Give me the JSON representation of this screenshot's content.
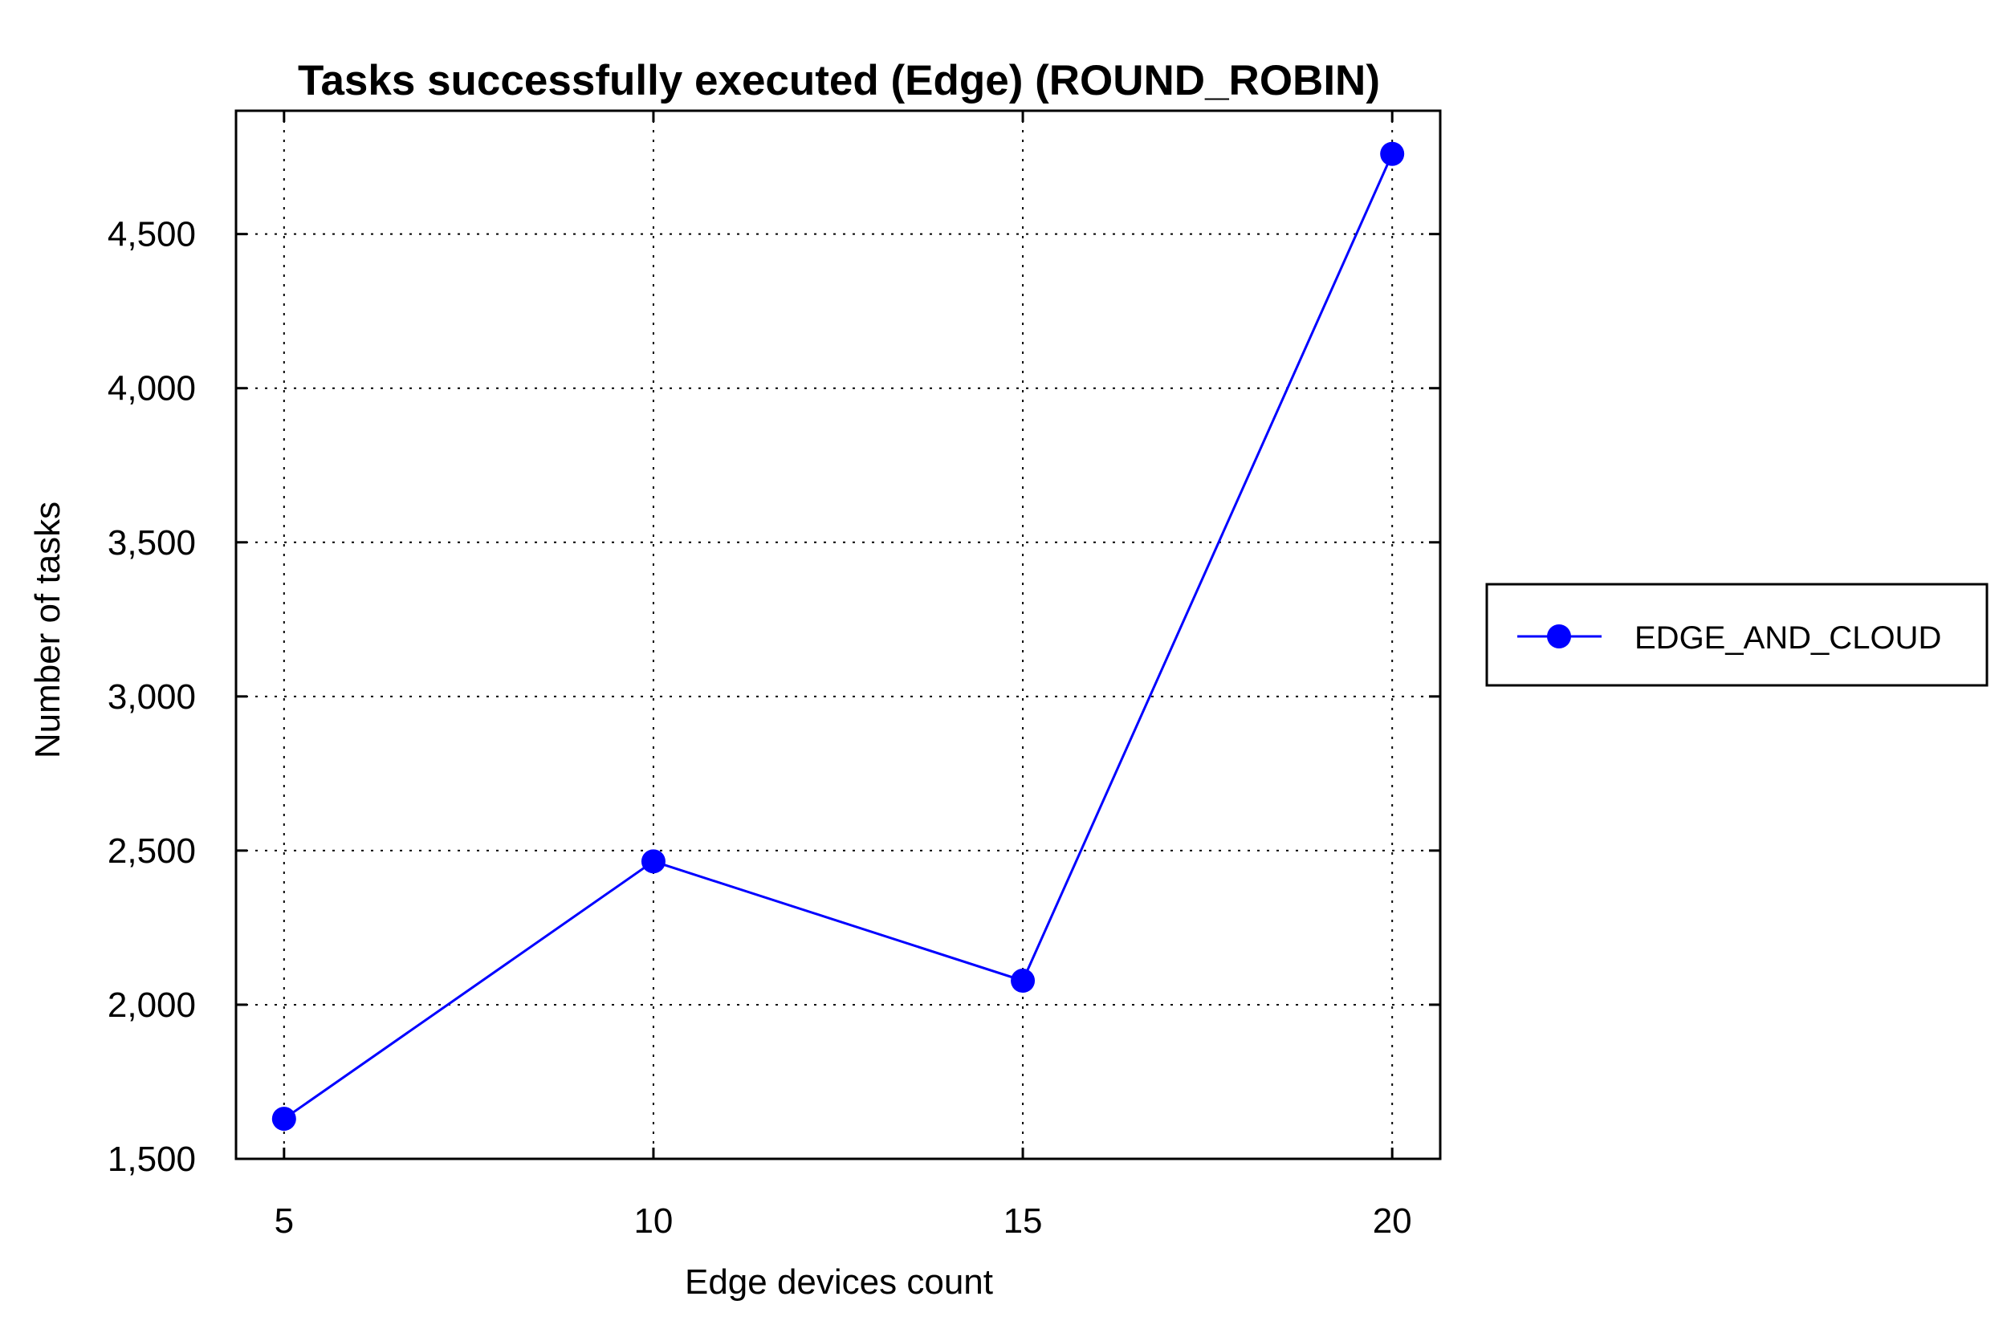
{
  "chart_data": {
    "type": "line",
    "title": "Tasks successfully executed (Edge) (ROUND_ROBIN)",
    "xlabel": "Edge devices count",
    "ylabel": "Number of tasks",
    "x": [
      5,
      10,
      15,
      20
    ],
    "x_tick_labels": [
      "5",
      "10",
      "15",
      "20"
    ],
    "xlim": [
      4.35,
      20.65
    ],
    "ylim": [
      1500,
      4900
    ],
    "y_ticks": [
      1500,
      2000,
      2500,
      3000,
      3500,
      4000,
      4500
    ],
    "y_tick_labels": [
      "1,500",
      "2,000",
      "2,500",
      "3,000",
      "3,500",
      "4,000",
      "4,500"
    ],
    "grid": true,
    "legend_position": "outside-right",
    "series": [
      {
        "name": "EDGE_AND_CLOUD",
        "color": "#0000ff",
        "marker": "circle",
        "values": [
          1630,
          2465,
          2078,
          4760
        ]
      }
    ]
  }
}
